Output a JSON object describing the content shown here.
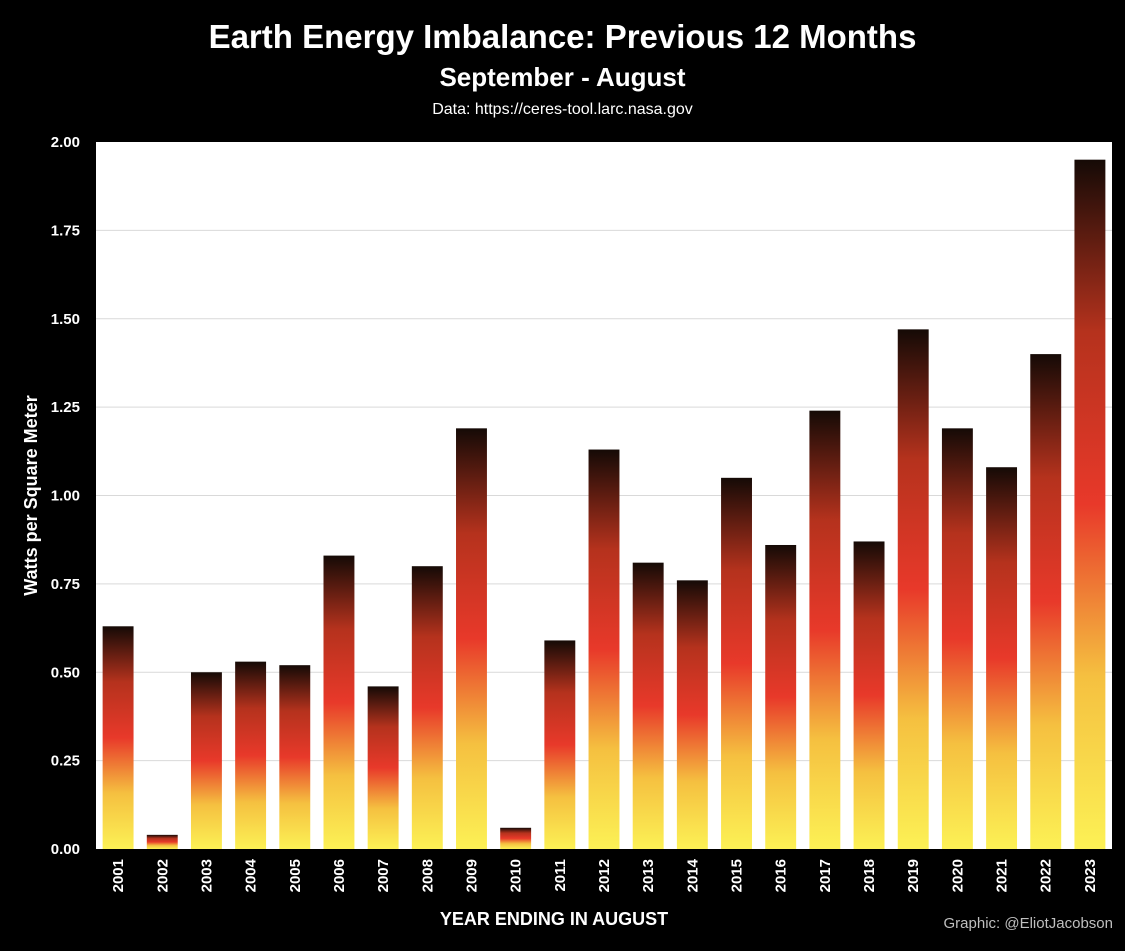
{
  "header": {
    "title": "Earth Energy Imbalance: Previous 12 Months",
    "subtitle": "September - August",
    "source": "Data: https://ceres-tool.larc.nasa.gov"
  },
  "footer": {
    "credit": "Graphic: @EliotJacobson"
  },
  "colors": {
    "background": "#000000",
    "plot_background": "#ffffff",
    "gridline": "#d9d9d9",
    "bar_gradient": [
      "#fcf155",
      "#f5c040",
      "#e8392a",
      "#b5321d",
      "#150a06"
    ]
  },
  "chart_data": {
    "type": "bar",
    "title": "Earth Energy Imbalance: Previous 12 Months",
    "subtitle": "September - August",
    "xlabel": "YEAR ENDING IN AUGUST",
    "ylabel": "Watts per Square Meter",
    "ylim": [
      0,
      2
    ],
    "yticks": [
      "0.00",
      "0.25",
      "0.50",
      "0.75",
      "1.00",
      "1.25",
      "1.50",
      "1.75",
      "2.00"
    ],
    "grid": true,
    "legend": "none",
    "categories": [
      "2001",
      "2002",
      "2003",
      "2004",
      "2005",
      "2006",
      "2007",
      "2008",
      "2009",
      "2010",
      "2011",
      "2012",
      "2013",
      "2014",
      "2015",
      "2016",
      "2017",
      "2018",
      "2019",
      "2020",
      "2021",
      "2022",
      "2023"
    ],
    "values": [
      0.63,
      0.04,
      0.5,
      0.53,
      0.52,
      0.83,
      0.46,
      0.8,
      1.19,
      0.06,
      0.59,
      1.13,
      0.81,
      0.76,
      1.05,
      0.86,
      1.24,
      0.87,
      1.47,
      1.19,
      1.08,
      1.4,
      1.95
    ]
  }
}
